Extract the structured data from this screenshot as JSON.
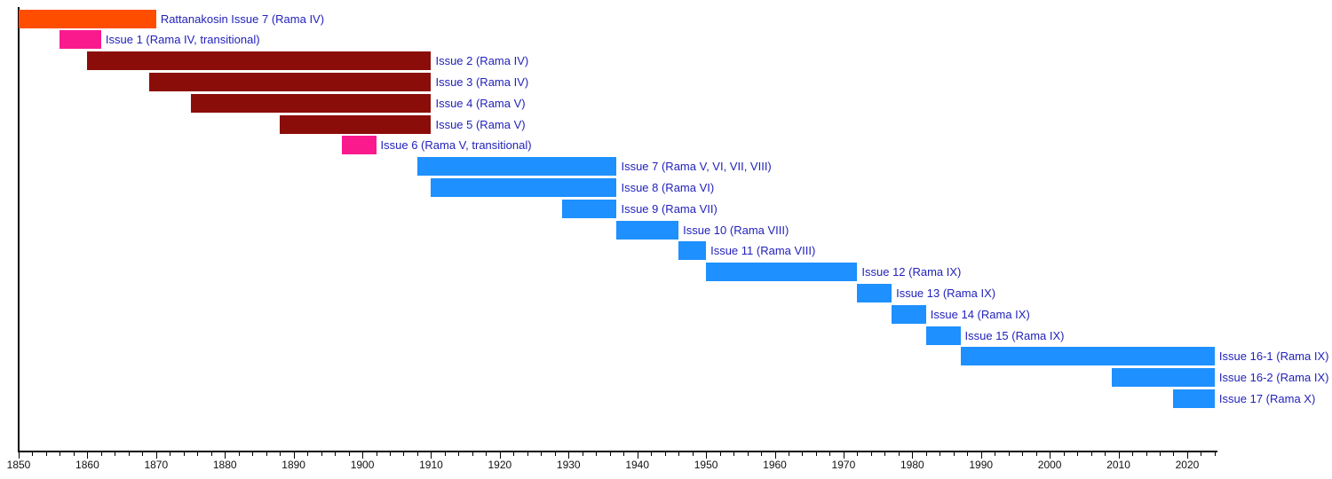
{
  "chart_data": {
    "type": "bar",
    "subtype": "gantt-timeline",
    "title": "",
    "xlabel": "",
    "ylabel": "",
    "grid": false,
    "legend": false,
    "background": "#FFFFFF",
    "x_axis": {
      "min": 1850,
      "max": 2024,
      "major_tick_step": 10,
      "minor_tick_step": 2,
      "major_tick_labels": [
        "1850",
        "1860",
        "1870",
        "1880",
        "1890",
        "1900",
        "1910",
        "1920",
        "1930",
        "1940",
        "1950",
        "1960",
        "1970",
        "1980",
        "1990",
        "2000",
        "2010",
        "2020"
      ]
    },
    "bars": [
      {
        "label": "Rattanakosin Issue 7 (Rama IV)",
        "from": 1850,
        "till": 1870,
        "color_key": "orange"
      },
      {
        "label": "Issue 1 (Rama IV, transitional)",
        "from": 1856,
        "till": 1862,
        "color_key": "pink"
      },
      {
        "label": "Issue 2 (Rama IV)",
        "from": 1860,
        "till": 1910,
        "color_key": "claret"
      },
      {
        "label": "Issue 3 (Rama IV)",
        "from": 1869,
        "till": 1910,
        "color_key": "claret"
      },
      {
        "label": "Issue 4 (Rama V)",
        "from": 1875,
        "till": 1910,
        "color_key": "claret"
      },
      {
        "label": "Issue 5 (Rama V)",
        "from": 1888,
        "till": 1910,
        "color_key": "claret"
      },
      {
        "label": "Issue 6 (Rama V, transitional)",
        "from": 1897,
        "till": 1902,
        "color_key": "pink"
      },
      {
        "label": "Issue 7 (Rama V, VI, VII, VIII)",
        "from": 1908,
        "till": 1937,
        "color_key": "blue"
      },
      {
        "label": "Issue 8 (Rama VI)",
        "from": 1910,
        "till": 1937,
        "color_key": "blue"
      },
      {
        "label": "Issue 9 (Rama VII)",
        "from": 1929,
        "till": 1937,
        "color_key": "blue"
      },
      {
        "label": "Issue 10 (Rama VIII)",
        "from": 1937,
        "till": 1946,
        "color_key": "blue"
      },
      {
        "label": "Issue 11 (Rama VIII)",
        "from": 1946,
        "till": 1950,
        "color_key": "blue"
      },
      {
        "label": "Issue 12 (Rama IX)",
        "from": 1950,
        "till": 1972,
        "color_key": "blue"
      },
      {
        "label": "Issue 13 (Rama IX)",
        "from": 1972,
        "till": 1977,
        "color_key": "blue"
      },
      {
        "label": "Issue 14 (Rama IX)",
        "from": 1977,
        "till": 1982,
        "color_key": "blue"
      },
      {
        "label": "Issue 15 (Rama IX)",
        "from": 1982,
        "till": 1987,
        "color_key": "blue"
      },
      {
        "label": "Issue 16-1 (Rama IX)",
        "from": 1987,
        "till": 2024,
        "color_key": "blue"
      },
      {
        "label": "Issue 16-2 (Rama IX)",
        "from": 2009,
        "till": 2024,
        "color_key": "blue"
      },
      {
        "label": "Issue 17 (Rama X)",
        "from": 2018,
        "till": 2024,
        "color_key": "blue"
      }
    ],
    "colors": {
      "orange": "#FF4D00",
      "pink": "#FA1A8E",
      "claret": "#8B0D09",
      "blue": "#1E90FF",
      "bar_label_text": "#2222BB",
      "axis": "#000000",
      "tick_label_text": "#111111"
    }
  }
}
